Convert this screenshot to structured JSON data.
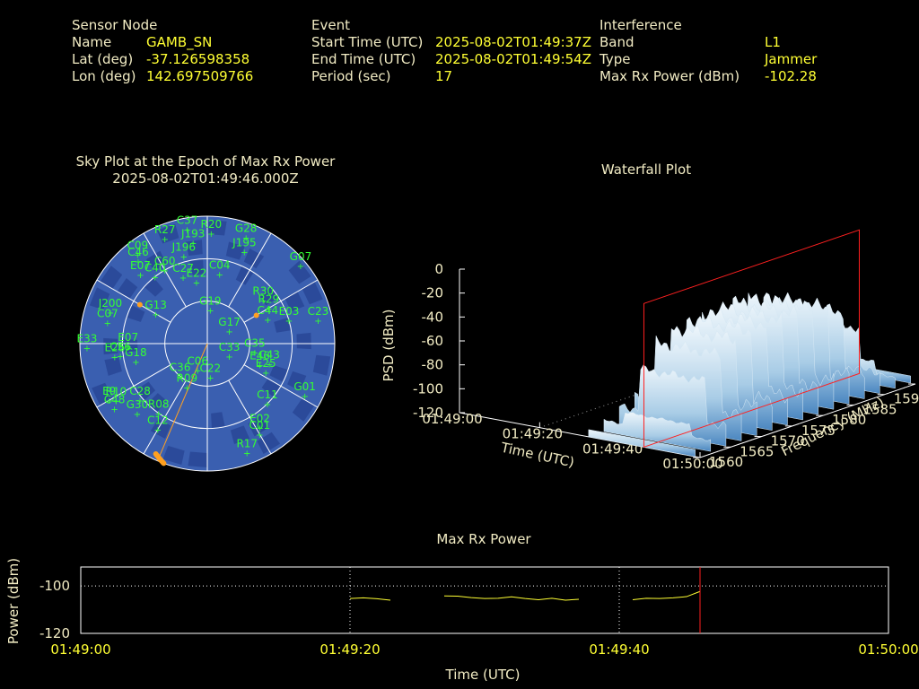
{
  "header": {
    "sensor": {
      "title": "Sensor Node",
      "name_label": "Name",
      "name_value": "GAMB_SN",
      "lat_label": "Lat (deg)",
      "lat_value": "-37.126598358",
      "lon_label": "Lon (deg)",
      "lon_value": "142.697509766"
    },
    "event": {
      "title": "Event",
      "start_label": "Start Time (UTC)",
      "start_value": "2025-08-02T01:49:37Z",
      "end_label": "End Time (UTC)",
      "end_value": "2025-08-02T01:49:54Z",
      "period_label": "Period (sec)",
      "period_value": "17"
    },
    "interference": {
      "title": "Interference",
      "band_label": "Band",
      "band_value": "L1",
      "type_label": "Type",
      "type_value": "Jammer",
      "power_label": "Max Rx Power (dBm)",
      "power_value": "-102.28"
    }
  },
  "colors": {
    "label": "#f2ecc4",
    "value": "#ffff33",
    "sat": "#33ff33",
    "sky_bg": "#3a5fb0",
    "sky_dark": "#2b4a9a",
    "jammer": "#ffa020",
    "marker": "#ff2020"
  },
  "chart_data": [
    {
      "type": "scatter",
      "title": "Sky Plot at the Epoch of Max Rx Power",
      "subtitle": "2025-08-02T01:49:46.000Z",
      "projection": "polar (azimuth clockwise from north, elevation rings)",
      "satellites": [
        {
          "id": "R20",
          "az": 2,
          "el": 12
        },
        {
          "id": "G28",
          "az": 20,
          "el": 10
        },
        {
          "id": "J195",
          "az": 22,
          "el": 20
        },
        {
          "id": "C37",
          "az": 350,
          "el": 8
        },
        {
          "id": "J193",
          "az": 352,
          "el": 18
        },
        {
          "id": "J196",
          "az": 345,
          "el": 26
        },
        {
          "id": "R27",
          "az": 338,
          "el": 10
        },
        {
          "id": "C09",
          "az": 322,
          "el": 10
        },
        {
          "id": "C46",
          "az": 320,
          "el": 14
        },
        {
          "id": "E07",
          "az": 316,
          "el": 22
        },
        {
          "id": "C40",
          "az": 322,
          "el": 30
        },
        {
          "id": "C60",
          "az": 330,
          "el": 30
        },
        {
          "id": "C27",
          "az": 340,
          "el": 40
        },
        {
          "id": "C04",
          "az": 10,
          "el": 40
        },
        {
          "id": "E22",
          "az": 350,
          "el": 46
        },
        {
          "id": "G07",
          "az": 50,
          "el": 4
        },
        {
          "id": "R30",
          "az": 52,
          "el": 40
        },
        {
          "id": "R29",
          "az": 60,
          "el": 40
        },
        {
          "id": "C44",
          "az": 68,
          "el": 44
        },
        {
          "id": "E03",
          "az": 74,
          "el": 30
        },
        {
          "id": "C23",
          "az": 78,
          "el": 10
        },
        {
          "id": "G19",
          "az": 5,
          "el": 66
        },
        {
          "id": "G13",
          "az": 300,
          "el": 48
        },
        {
          "id": "J200",
          "az": 288,
          "el": 18
        },
        {
          "id": "C07",
          "az": 282,
          "el": 18
        },
        {
          "id": "E07b",
          "az": 268,
          "el": 34
        },
        {
          "id": "C56",
          "az": 262,
          "el": 28
        },
        {
          "id": "E33",
          "az": 268,
          "el": 5
        },
        {
          "id": "E26",
          "az": 262,
          "el": 24
        },
        {
          "id": "G18",
          "az": 256,
          "el": 38
        },
        {
          "id": "G17",
          "az": 60,
          "el": 72
        },
        {
          "id": "C33",
          "az": 120,
          "el": 72
        },
        {
          "id": "C35",
          "az": 100,
          "el": 56
        },
        {
          "id": "E46",
          "az": 112,
          "el": 50
        },
        {
          "id": "E25",
          "az": 116,
          "el": 44
        },
        {
          "id": "C43",
          "az": 108,
          "el": 44
        },
        {
          "id": "G01",
          "az": 118,
          "el": 12
        },
        {
          "id": "C11",
          "az": 135,
          "el": 30
        },
        {
          "id": "E02",
          "az": 148,
          "el": 20
        },
        {
          "id": "C01",
          "az": 150,
          "el": 16
        },
        {
          "id": "R17",
          "az": 160,
          "el": 8
        },
        {
          "id": "C22",
          "az": 175,
          "el": 66
        },
        {
          "id": "C06",
          "az": 200,
          "el": 70
        },
        {
          "id": "R09",
          "az": 205,
          "el": 56
        },
        {
          "id": "C36",
          "az": 220,
          "el": 60
        },
        {
          "id": "C48",
          "az": 235,
          "el": 10
        },
        {
          "id": "R10",
          "az": 238,
          "el": 14
        },
        {
          "id": "E9",
          "az": 240,
          "el": 10
        },
        {
          "id": "G30",
          "az": 225,
          "el": 20
        },
        {
          "id": "C28",
          "az": 230,
          "el": 28
        },
        {
          "id": "R08",
          "az": 215,
          "el": 30
        },
        {
          "id": "C12",
          "az": 210,
          "el": 20
        }
      ],
      "jammer_track": {
        "az_range": [
          200,
          205
        ],
        "el_range": [
          0,
          4
        ]
      },
      "jammer_direction_az": 203,
      "extra_points": [
        {
          "az": 300,
          "el": 35
        },
        {
          "az": 60,
          "el": 50
        }
      ]
    },
    {
      "type": "area",
      "title": "Waterfall Plot",
      "xlabel": "Time (UTC)",
      "ylabel": "Frequency (MHz)",
      "zlabel": "PSD (dBm)",
      "x_ticks": [
        "01:49:00",
        "01:49:20",
        "01:49:40",
        "01:50:00"
      ],
      "y_ticks": [
        "1560",
        "1565",
        "1570",
        "1575",
        "1580",
        "1585",
        "1590",
        "1595"
      ],
      "z_ticks": [
        "0",
        "-20",
        "-40",
        "-60",
        "-80",
        "-100",
        "-120"
      ],
      "zlim": [
        -120,
        0
      ],
      "active_time_range": [
        "01:49:37",
        "01:49:54"
      ],
      "active_freq_range": [
        1565,
        1590
      ],
      "peak_psd": -45,
      "marker_time": "01:49:46"
    },
    {
      "type": "line",
      "title": "Max Rx Power",
      "xlabel": "Time (UTC)",
      "ylabel": "Power (dBm)",
      "x_ticks": [
        "01:49:00",
        "01:49:20",
        "01:49:40",
        "01:50:00"
      ],
      "y_ticks": [
        "-100",
        "-120"
      ],
      "ylim": [
        -120,
        -92
      ],
      "xlim_sec": [
        0,
        60
      ],
      "marker_sec": 46,
      "segments": [
        [
          [
            20,
            -105.3
          ],
          [
            21,
            -105.0
          ],
          [
            22,
            -105.4
          ],
          [
            23,
            -106.0
          ]
        ],
        [
          [
            27,
            -104.2
          ],
          [
            28,
            -104.3
          ],
          [
            29,
            -104.9
          ],
          [
            30,
            -105.3
          ],
          [
            31,
            -105.2
          ],
          [
            32,
            -104.6
          ],
          [
            33,
            -105.3
          ],
          [
            34,
            -105.8
          ],
          [
            35,
            -105.2
          ],
          [
            36,
            -106.0
          ],
          [
            37,
            -105.6
          ]
        ],
        [
          [
            41,
            -105.8
          ],
          [
            42,
            -105.2
          ],
          [
            43,
            -105.3
          ],
          [
            44,
            -105.0
          ],
          [
            45,
            -104.5
          ],
          [
            46,
            -102.3
          ]
        ]
      ]
    }
  ]
}
